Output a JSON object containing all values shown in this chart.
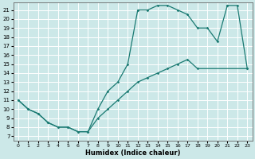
{
  "xlabel": "Humidex (Indice chaleur)",
  "background_color": "#cce8e8",
  "line_color": "#1a7a72",
  "grid_color": "#ffffff",
  "xlim": [
    -0.5,
    23.5
  ],
  "ylim": [
    6.5,
    21.8
  ],
  "xticks": [
    0,
    1,
    2,
    3,
    4,
    5,
    6,
    7,
    8,
    9,
    10,
    11,
    12,
    13,
    14,
    15,
    16,
    17,
    18,
    19,
    20,
    21,
    22,
    23
  ],
  "yticks": [
    7,
    8,
    9,
    10,
    11,
    12,
    13,
    14,
    15,
    16,
    17,
    18,
    19,
    20,
    21
  ],
  "line1_x": [
    0,
    1,
    2,
    3,
    4,
    5,
    6,
    7,
    8,
    9,
    10,
    11,
    12,
    13,
    14,
    15,
    16,
    17,
    18,
    19,
    20,
    21
  ],
  "line1_y": [
    11,
    10,
    9.5,
    8.5,
    8,
    8,
    7.5,
    7.5,
    10,
    12,
    13,
    15,
    21,
    21,
    21.5,
    21.5,
    21,
    20.5,
    19,
    19,
    17.5,
    21.5
  ],
  "line2_x": [
    21,
    22,
    23
  ],
  "line2_y": [
    21.5,
    21.5,
    14.5
  ],
  "line3_x": [
    0,
    1,
    2,
    3,
    4,
    5,
    6,
    7,
    8,
    9,
    10,
    11,
    12,
    13,
    14,
    15,
    16,
    17,
    18,
    23
  ],
  "line3_y": [
    11,
    10,
    9.5,
    8.5,
    8,
    8,
    7.5,
    7.5,
    9,
    10,
    11,
    12,
    13,
    13.5,
    14,
    14.5,
    15,
    15.5,
    14.5,
    14.5
  ]
}
